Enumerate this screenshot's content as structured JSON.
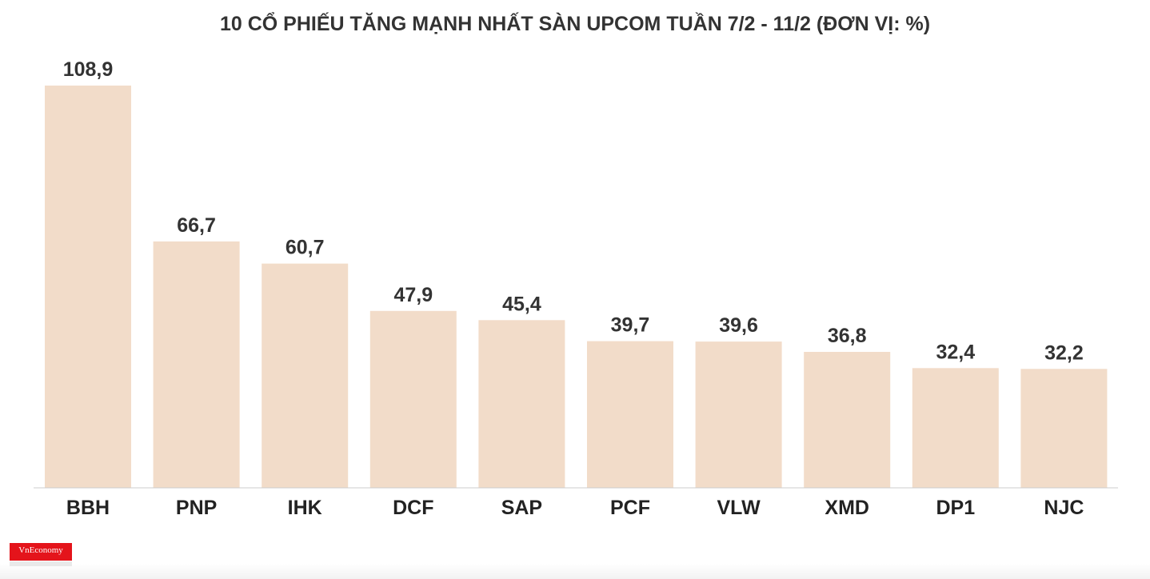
{
  "chart_data": {
    "type": "bar",
    "title": "10 CỔ PHIẾU TĂNG MẠNH NHẤT SÀN UPCOM TUẦN 7/2 - 11/2 (ĐƠN VỊ: %)",
    "categories": [
      "BBH",
      "PNP",
      "IHK",
      "DCF",
      "SAP",
      "PCF",
      "VLW",
      "XMD",
      "DP1",
      "NJC"
    ],
    "values": [
      108.9,
      66.7,
      60.7,
      47.9,
      45.4,
      39.7,
      39.6,
      36.8,
      32.4,
      32.2
    ],
    "value_labels": [
      "108,9",
      "66,7",
      "60,7",
      "47,9",
      "45,4",
      "39,7",
      "39,6",
      "36,8",
      "32,4",
      "32,2"
    ],
    "ylim": [
      0,
      108.9
    ],
    "grid": false,
    "legend": "none",
    "bar_color": "#f2dcc9",
    "axis_color": "#cccccc"
  },
  "branding": {
    "logo_text": "VnEconomy",
    "logo_color": "#e4141b"
  }
}
